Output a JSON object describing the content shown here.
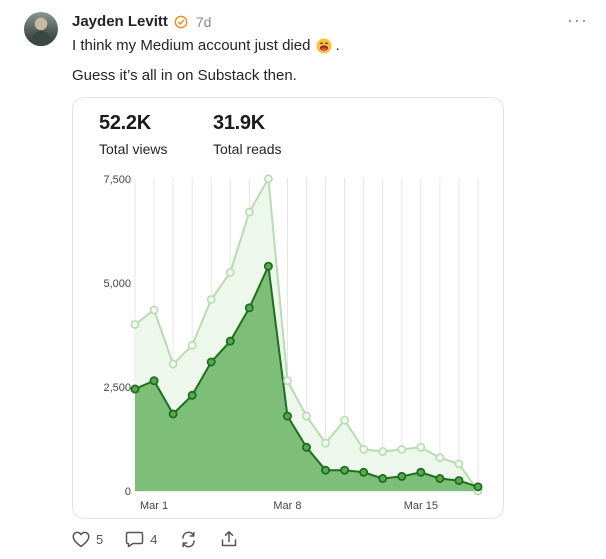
{
  "post": {
    "author": "Jayden Levitt",
    "timestamp": "7d",
    "line1": "I think my Medium account just died",
    "line1_suffix": ".",
    "line2": "Guess it’s all in on Substack then.",
    "icons": {
      "verified": "verified-badge-icon",
      "emoji": "face-with-open-mouth-vomiting-emoji",
      "more": "more-horizontal-icon"
    }
  },
  "stats": {
    "views_value": "52.2K",
    "views_label": "Total views",
    "reads_value": "31.9K",
    "reads_label": "Total reads"
  },
  "chart_data": {
    "type": "area",
    "x_ticks": [
      "Mar 1",
      "Mar 8",
      "Mar 15"
    ],
    "y_ticks": [
      "7,500",
      "5,000",
      "2,500",
      "0"
    ],
    "ylim": [
      0,
      8000
    ],
    "colors": {
      "views": "#b9dbb1",
      "reads": "#1f6e1f",
      "reads_fill": "#7dbf79",
      "views_fill": "#eef7ec"
    },
    "series": [
      {
        "values": [
          4000,
          4350,
          3050,
          3500,
          4600,
          5250,
          6700,
          7500,
          2650,
          1800,
          1150,
          1700,
          1000,
          950,
          1000,
          1050,
          800,
          650,
          0
        ]
      },
      {
        "values": [
          2450,
          2650,
          1850,
          2300,
          3100,
          3600,
          4400,
          5400,
          1800,
          1050,
          500,
          500,
          450,
          300,
          350,
          450,
          300,
          250,
          100
        ]
      }
    ]
  },
  "actions": {
    "likes": "5",
    "comments": "4"
  }
}
